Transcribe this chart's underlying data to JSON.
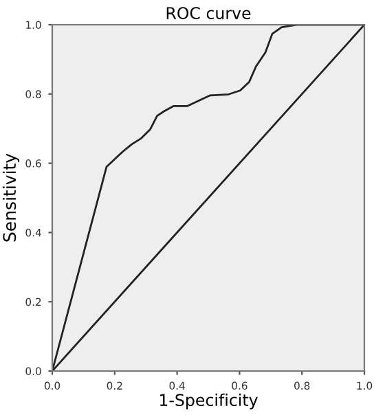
{
  "chart_data": {
    "type": "line",
    "title": "ROC curve",
    "xlabel": "1-Specificity",
    "ylabel": "Sensitivity",
    "series": [
      {
        "color": "#222222",
        "x": [
          0,
          0.174,
          0.225,
          0.255,
          0.285,
          0.314,
          0.336,
          0.358,
          0.388,
          0.432,
          0.506,
          0.565,
          0.602,
          0.631,
          0.653,
          0.683,
          0.705,
          0.735,
          0.786,
          1.0
        ],
        "values": [
          0,
          0.59,
          0.633,
          0.655,
          0.672,
          0.698,
          0.737,
          0.75,
          0.765,
          0.765,
          0.796,
          0.799,
          0.81,
          0.835,
          0.88,
          0.92,
          0.974,
          0.993,
          1.0,
          1.0
        ]
      },
      {
        "color": "#222222",
        "x": [
          0,
          1
        ],
        "values": [
          0,
          1
        ]
      }
    ],
    "xlim": [
      0,
      1
    ],
    "ylim": [
      0,
      1
    ],
    "xticks": [
      {
        "value": 0,
        "label": "0.0"
      },
      {
        "value": 0.2,
        "label": "0.2"
      },
      {
        "value": 0.4,
        "label": "0.4"
      },
      {
        "value": 0.6,
        "label": "0.6"
      },
      {
        "value": 0.8,
        "label": "0.8"
      },
      {
        "value": 1,
        "label": "1.0"
      }
    ],
    "yticks": [
      {
        "value": 0,
        "label": "0.0"
      },
      {
        "value": 0.2,
        "label": "0.2"
      },
      {
        "value": 0.4,
        "label": "0.4"
      },
      {
        "value": 0.6,
        "label": "0.6"
      },
      {
        "value": 0.8,
        "label": "0.8"
      },
      {
        "value": 1,
        "label": "1.0"
      }
    ],
    "grid": false,
    "legend": false
  }
}
